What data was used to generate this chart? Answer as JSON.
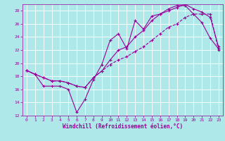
{
  "xlabel": "Windchill (Refroidissement éolien,°C)",
  "bg_color": "#aee8e8",
  "grid_color": "#ffffff",
  "line_color": "#990099",
  "xlim": [
    -0.5,
    23.5
  ],
  "ylim": [
    12,
    29
  ],
  "xticks": [
    0,
    1,
    2,
    3,
    4,
    5,
    6,
    7,
    8,
    9,
    10,
    11,
    12,
    13,
    14,
    15,
    16,
    17,
    18,
    19,
    20,
    21,
    22,
    23
  ],
  "yticks": [
    12,
    14,
    16,
    18,
    20,
    22,
    24,
    26,
    28
  ],
  "line1_x": [
    0,
    1,
    2,
    3,
    4,
    5,
    6,
    7,
    8,
    9,
    10,
    11,
    12,
    13,
    14,
    15,
    16,
    17,
    18,
    19,
    20,
    21,
    22,
    23
  ],
  "line1_y": [
    18.9,
    18.3,
    16.5,
    16.5,
    16.5,
    16.0,
    12.5,
    14.5,
    17.5,
    19.8,
    23.5,
    24.5,
    22.2,
    26.5,
    25.2,
    27.2,
    27.5,
    28.3,
    28.8,
    28.8,
    27.5,
    26.2,
    23.8,
    22.2
  ],
  "line2_x": [
    0,
    1,
    2,
    3,
    4,
    5,
    6,
    7,
    8,
    9,
    10,
    11,
    12,
    13,
    14,
    15,
    16,
    17,
    18,
    19,
    20,
    21,
    22,
    23
  ],
  "line2_y": [
    18.9,
    18.3,
    17.8,
    17.3,
    17.3,
    17.0,
    16.5,
    16.3,
    17.8,
    18.8,
    20.5,
    22.0,
    22.5,
    24.0,
    25.0,
    26.5,
    27.5,
    28.0,
    28.5,
    29.0,
    28.3,
    27.8,
    27.0,
    22.5
  ],
  "line3_x": [
    0,
    1,
    2,
    3,
    4,
    5,
    6,
    7,
    8,
    9,
    10,
    11,
    12,
    13,
    14,
    15,
    16,
    17,
    18,
    19,
    20,
    21,
    22,
    23
  ],
  "line3_y": [
    18.9,
    18.3,
    17.8,
    17.3,
    17.3,
    17.0,
    16.5,
    16.3,
    17.8,
    18.8,
    19.8,
    20.5,
    21.0,
    21.8,
    22.5,
    23.5,
    24.5,
    25.5,
    26.0,
    27.0,
    27.5,
    27.5,
    27.5,
    22.0
  ],
  "marker": "+",
  "markersize": 3.5,
  "linewidth": 0.8,
  "tick_fontsize": 4.5,
  "label_fontsize": 5.5
}
